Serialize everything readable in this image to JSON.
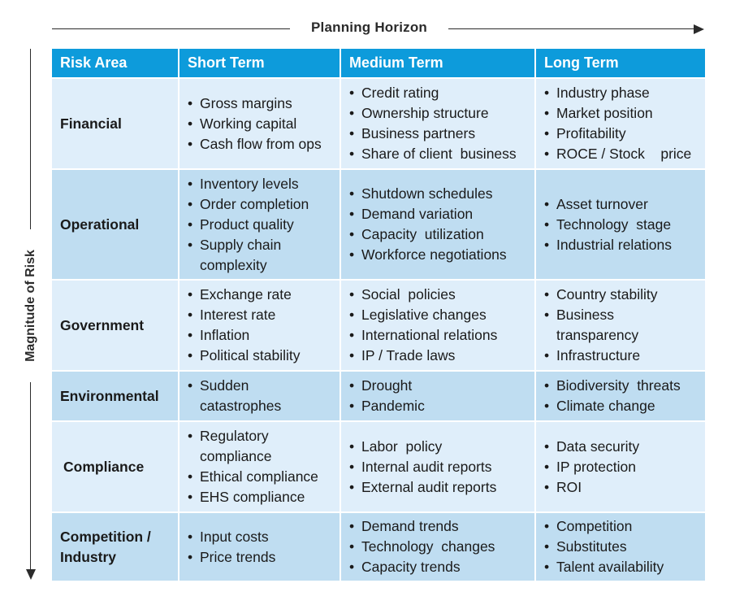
{
  "horizon_label": "Planning Horizon",
  "magnitude_label": "Magnitude of Risk",
  "headers": [
    "Risk Area",
    "Short Term",
    "Medium Term",
    "Long Term"
  ],
  "rows": [
    {
      "area": [
        "Financial"
      ],
      "short": [
        "Gross margins",
        "Working capital",
        "Cash flow from ops"
      ],
      "medium": [
        "Credit rating",
        "Ownership structure",
        "Business partners",
        "Share of client  business"
      ],
      "long": [
        "Industry phase",
        "Market position",
        "Profitability",
        "ROCE / Stock    price"
      ]
    },
    {
      "area": [
        "Operational"
      ],
      "short": [
        "Inventory levels",
        "Order completion",
        "Product quality",
        "Supply chain complexity"
      ],
      "medium": [
        "Shutdown schedules",
        "Demand variation",
        "Capacity  utilization",
        "Workforce negotiations"
      ],
      "long": [
        "Asset turnover",
        "Technology  stage",
        "Industrial relations"
      ]
    },
    {
      "area": [
        "Government"
      ],
      "short": [
        "Exchange rate",
        "Interest rate",
        "Inflation",
        "Political stability"
      ],
      "medium": [
        "Social  policies",
        "Legislative changes",
        "International relations",
        "IP / Trade laws"
      ],
      "long": [
        "Country stability",
        "Business transparency",
        "Infrastructure"
      ]
    },
    {
      "area": [
        "Environmental"
      ],
      "short": [
        "Sudden catastrophes"
      ],
      "medium": [
        "Drought",
        "Pandemic"
      ],
      "long": [
        "Biodiversity  threats",
        "Climate change"
      ]
    },
    {
      "area": [
        "Compliance"
      ],
      "short": [
        "Regulatory compliance",
        "Ethical compliance",
        "EHS compliance"
      ],
      "medium": [
        "Labor  policy",
        "Internal audit reports",
        "External audit reports"
      ],
      "long": [
        "Data security",
        "IP protection",
        "ROI"
      ]
    },
    {
      "area": [
        "Competition /",
        "Industry"
      ],
      "short": [
        "Input costs",
        "Price trends"
      ],
      "medium": [
        "Demand trends",
        "Technology  changes",
        "Capacity trends"
      ],
      "long": [
        "Competition",
        "Substitutes",
        "Talent availability"
      ]
    }
  ]
}
